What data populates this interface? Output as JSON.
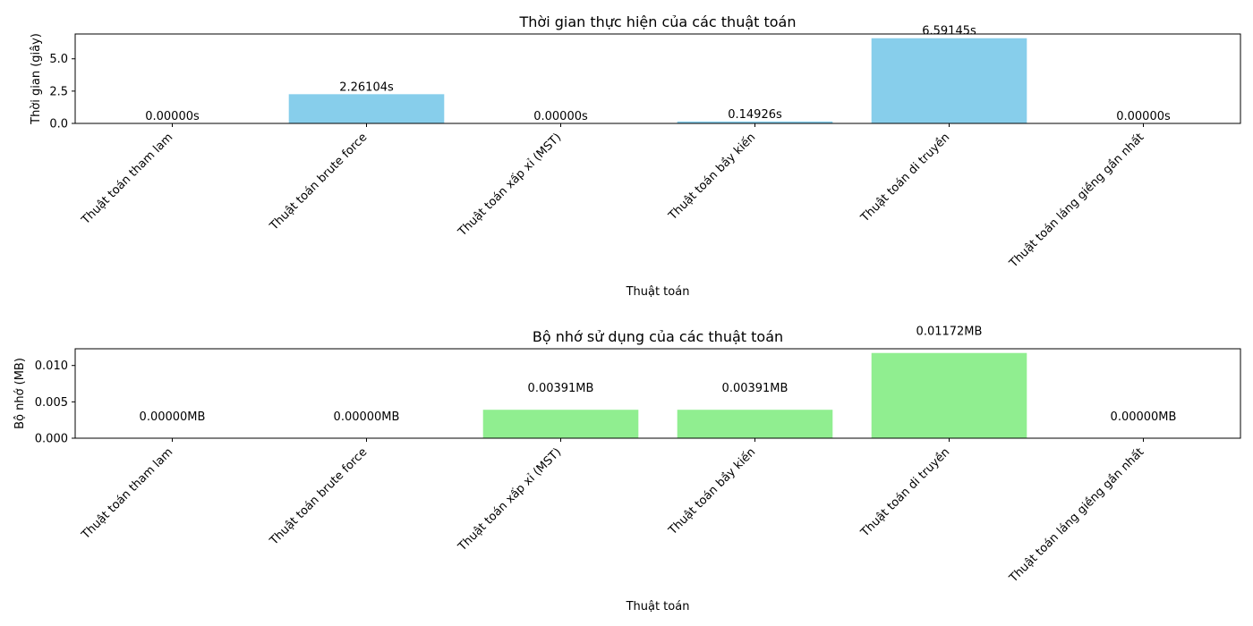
{
  "chart_data": [
    {
      "type": "bar",
      "title": "Thời gian thực hiện của các thuật toán",
      "xlabel": "Thuật toán",
      "ylabel": "Thời gian (giây)",
      "categories": [
        "Thuật toán tham lam",
        "Thuật toán brute force",
        "Thuật toán xấp xỉ (MST)",
        "Thuật toán bầy kiến",
        "Thuật toán di truyền",
        "Thuật toán láng giềng gần nhất"
      ],
      "values": [
        0.0,
        2.26104,
        0.0,
        0.14926,
        6.59145,
        0.0
      ],
      "data_labels": [
        "0.00000s",
        "2.26104s",
        "0.00000s",
        "0.14926s",
        "6.59145s",
        "0.00000s"
      ],
      "ylim": [
        0,
        6.92
      ],
      "yticks": [
        0.0,
        2.5,
        5.0
      ],
      "ytick_labels": [
        "0.0",
        "2.5",
        "5.0"
      ],
      "color": "#87CEEB",
      "grid": false
    },
    {
      "type": "bar",
      "title": "Bộ nhớ sử dụng của các thuật toán",
      "xlabel": "Thuật toán",
      "ylabel": "Bộ nhớ (MB)",
      "categories": [
        "Thuật toán tham lam",
        "Thuật toán brute force",
        "Thuật toán xấp xỉ (MST)",
        "Thuật toán bầy kiến",
        "Thuật toán di truyền",
        "Thuật toán láng giềng gần nhất"
      ],
      "values": [
        0.0,
        0.0,
        0.00391,
        0.00391,
        0.01172,
        0.0
      ],
      "data_labels": [
        "0.00000MB",
        "0.00000MB",
        "0.00391MB",
        "0.00391MB",
        "0.01172MB",
        "0.00000MB"
      ],
      "ylim": [
        0,
        0.0123
      ],
      "yticks": [
        0.0,
        0.005,
        0.01
      ],
      "ytick_labels": [
        "0.000",
        "0.005",
        "0.010"
      ],
      "color": "#90EE90",
      "grid": false
    }
  ]
}
